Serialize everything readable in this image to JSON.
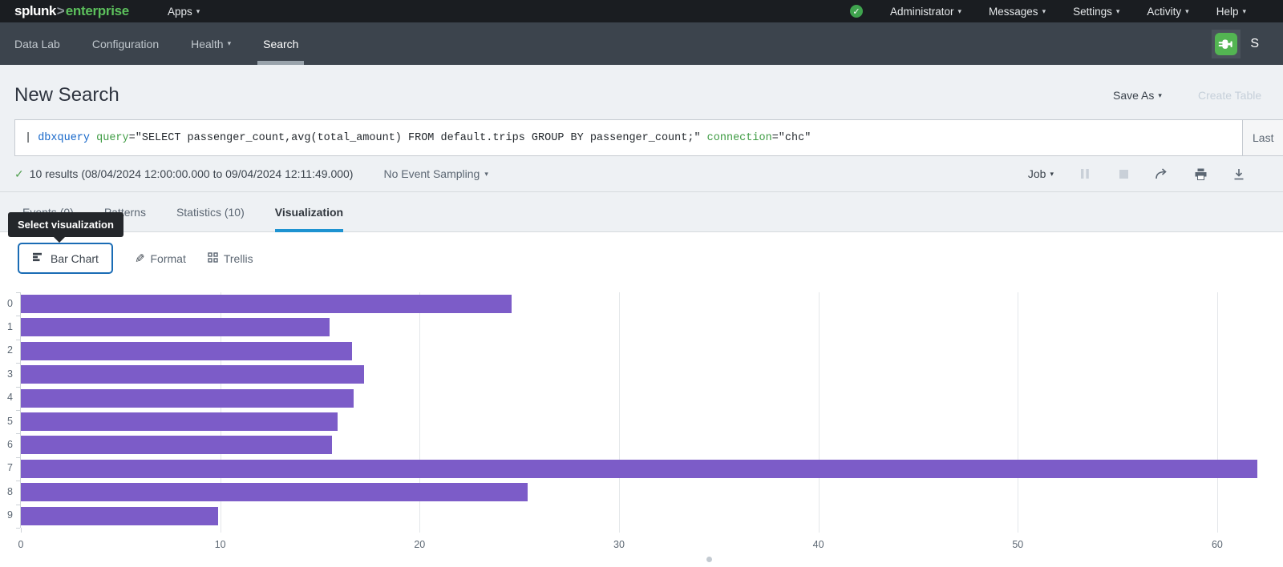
{
  "topbar": {
    "logo": {
      "brand": "splunk",
      "gt": ">",
      "product": "enterprise"
    },
    "apps_label": "Apps",
    "status_check": "✓",
    "menus": [
      "Administrator",
      "Messages",
      "Settings",
      "Activity",
      "Help"
    ]
  },
  "appnav": {
    "items": [
      {
        "label": "Data Lab"
      },
      {
        "label": "Configuration"
      },
      {
        "label": "Health"
      },
      {
        "label": "Search"
      }
    ],
    "app_initial": "S"
  },
  "header": {
    "title": "New Search",
    "save_as_label": "Save As",
    "create_table_label": "Create Table"
  },
  "search": {
    "query_parts": [
      {
        "text": "| ",
        "style": "default"
      },
      {
        "text": "dbxquery",
        "style": "command"
      },
      {
        "text": " ",
        "style": "default"
      },
      {
        "text": "query",
        "style": "param"
      },
      {
        "text": "=\"SELECT passenger_count,avg(total_amount) FROM default.trips GROUP BY passenger_count;\" ",
        "style": "default"
      },
      {
        "text": "connection",
        "style": "param"
      },
      {
        "text": "=\"chc\"",
        "style": "default"
      }
    ],
    "timerange_label": "Last"
  },
  "results_bar": {
    "check": "✓",
    "summary": "10 results (08/04/2024 12:00:00.000 to 09/04/2024 12:11:49.000)",
    "sampling_label": "No Event Sampling",
    "job_label": "Job"
  },
  "tabs": [
    {
      "label": "Events (0)"
    },
    {
      "label": "Patterns"
    },
    {
      "label": "Statistics (10)"
    },
    {
      "label": "Visualization"
    }
  ],
  "tooltip": {
    "text": "Select visualization"
  },
  "viz_controls": {
    "chart_type_label": "Bar Chart",
    "format_label": "Format",
    "trellis_label": "Trellis"
  },
  "chart_data": {
    "type": "bar",
    "orientation": "horizontal",
    "title": "",
    "categories": [
      "0",
      "1",
      "2",
      "3",
      "4",
      "5",
      "6",
      "7",
      "8",
      "9"
    ],
    "values": [
      24.6,
      15.5,
      16.6,
      17.2,
      16.7,
      15.9,
      15.6,
      62.0,
      25.4,
      9.9
    ],
    "x_ticks": [
      0,
      10,
      20,
      30,
      40,
      50,
      60
    ],
    "xlim": [
      0,
      63.3
    ],
    "grid": true,
    "legend": "none",
    "bar_color": "#7c5cc8"
  },
  "colors": {
    "accent_blue": "#1e93d1",
    "button_border_blue": "#1a6cb5",
    "bar_purple": "#7c5cc8",
    "brand_green": "#5cc05c",
    "success_green": "#53a051"
  }
}
